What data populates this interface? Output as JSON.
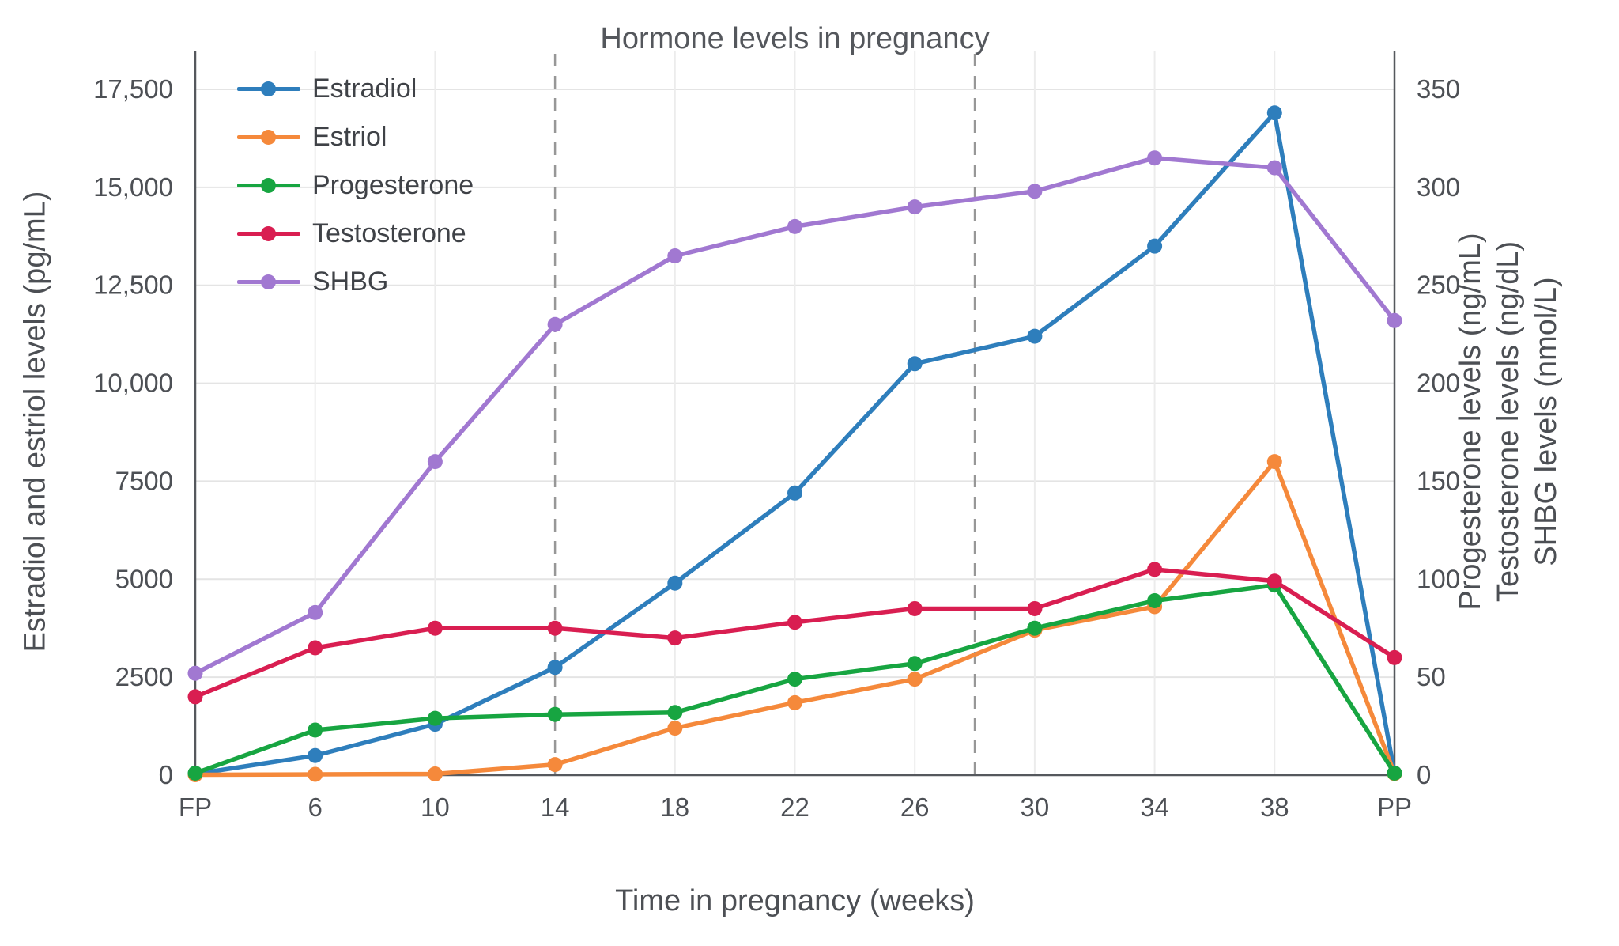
{
  "chart_data": {
    "type": "line",
    "title": "Hormone levels in pregnancy",
    "legend_position": "top-left",
    "grid": true,
    "x_axis": {
      "title": "Time in pregnancy (weeks)",
      "categories": [
        "FP",
        "6",
        "10",
        "14",
        "18",
        "22",
        "26",
        "30",
        "34",
        "38",
        "PP"
      ]
    },
    "left_axis": {
      "title": "Estradiol and estriol levels (pg/mL)",
      "min": 0,
      "max": 17500,
      "tick_values": [
        0,
        2500,
        5000,
        7500,
        10000,
        12500,
        15000,
        17500
      ],
      "tick_labels": [
        "0",
        "2500",
        "5000",
        "7500",
        "10,000",
        "12,500",
        "15,000",
        "17,500"
      ]
    },
    "right_axis": {
      "titles": [
        "Progesterone levels (ng/mL)",
        "Testosterone levels (ng/dL)",
        "SHBG levels (nmol/L)"
      ],
      "min": 0,
      "max": 350,
      "tick_values": [
        0,
        50,
        100,
        150,
        200,
        250,
        300,
        350
      ],
      "tick_labels": [
        "0",
        "50",
        "100",
        "150",
        "200",
        "250",
        "300",
        "350"
      ]
    },
    "reference_lines": {
      "dashed_at_index": [
        3,
        6.5
      ],
      "solid_at_index": [
        0,
        10
      ]
    },
    "series": [
      {
        "name": "Estradiol",
        "axis": "left",
        "color": "#2e7ebc",
        "values": [
          30,
          500,
          1300,
          2750,
          4900,
          7200,
          10500,
          11200,
          13500,
          16900,
          50
        ]
      },
      {
        "name": "Estriol",
        "axis": "left",
        "color": "#f5893b",
        "values": [
          10,
          20,
          30,
          270,
          1200,
          1850,
          2450,
          3700,
          4300,
          8000,
          40
        ]
      },
      {
        "name": "Progesterone",
        "axis": "right",
        "color": "#17a541",
        "values": [
          1,
          23,
          29,
          31,
          32,
          49,
          57,
          75,
          89,
          97,
          1
        ]
      },
      {
        "name": "Testosterone",
        "axis": "right",
        "color": "#d91e51",
        "values": [
          40,
          65,
          75,
          75,
          70,
          78,
          85,
          85,
          105,
          99,
          60
        ]
      },
      {
        "name": "SHBG",
        "axis": "right",
        "color": "#a178d1",
        "values": [
          52,
          83,
          160,
          230,
          265,
          280,
          290,
          298,
          315,
          310,
          232
        ]
      }
    ]
  }
}
